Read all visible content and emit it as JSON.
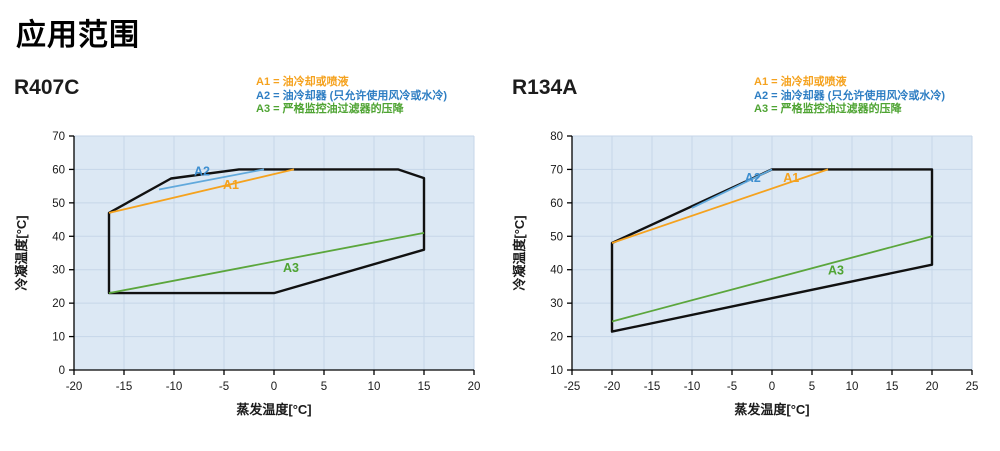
{
  "title": "应用范围",
  "legend": {
    "items": [
      {
        "label": "A1 = 油冷却或喷液",
        "color": "#F5A21E"
      },
      {
        "label": "A2 = 油冷却器 (只允许使用风冷或水冷)",
        "color": "#2E7EC3"
      },
      {
        "label": "A3 = 严格监控油过滤器的压降",
        "color": "#4FA433"
      }
    ]
  },
  "colors": {
    "plot_bg": "#dce8f4",
    "grid": "#c6d6e8",
    "axis": "#000000",
    "envelope": "#111111"
  },
  "chart_data": [
    {
      "type": "line",
      "title": "R407C",
      "xlabel": "蒸发温度[°C]",
      "ylabel": "冷凝温度[°C]",
      "xlim": [
        -20,
        20
      ],
      "ylim": [
        0,
        70
      ],
      "x_ticks": [
        -20,
        -15,
        -10,
        -5,
        0,
        5,
        10,
        15,
        20
      ],
      "y_ticks": [
        0,
        10,
        20,
        30,
        40,
        50,
        60,
        70
      ],
      "grid": true,
      "envelope": [
        [
          -16.5,
          47
        ],
        [
          -10.3,
          57.3
        ],
        [
          -3.5,
          60
        ],
        [
          12.4,
          60
        ],
        [
          15,
          57.4
        ],
        [
          15,
          36
        ],
        [
          0,
          23
        ],
        [
          -16.5,
          23
        ]
      ],
      "series": [
        {
          "name": "A1",
          "color": "#F5A21E",
          "label_color": "#F5A21E",
          "points": [
            [
              -16.5,
              47
            ],
            [
              2,
              60
            ]
          ],
          "label_at": [
            -4.3,
            54.2
          ]
        },
        {
          "name": "A2",
          "color": "#61A9DC",
          "label_color": "#3E8FD0",
          "points": [
            [
              -11.5,
              54
            ],
            [
              -1,
              60
            ]
          ],
          "label_at": [
            -7.2,
            58.2
          ]
        },
        {
          "name": "A3",
          "color": "#5BA63C",
          "label_color": "#4FA433",
          "points": [
            [
              -16.5,
              23
            ],
            [
              15,
              41
            ]
          ],
          "label_at": [
            1.7,
            29.3
          ]
        }
      ]
    },
    {
      "type": "line",
      "title": "R134A",
      "xlabel": "蒸发温度[°C]",
      "ylabel": "冷凝温度[°C]",
      "xlim": [
        -25,
        25
      ],
      "ylim": [
        10,
        80
      ],
      "x_ticks": [
        -25,
        -20,
        -15,
        -10,
        -5,
        0,
        5,
        10,
        15,
        20,
        25
      ],
      "y_ticks": [
        10,
        20,
        30,
        40,
        50,
        60,
        70,
        80
      ],
      "grid": true,
      "envelope": [
        [
          -20,
          48
        ],
        [
          0,
          70
        ],
        [
          20,
          70
        ],
        [
          20,
          41.5
        ],
        [
          -20,
          21.5
        ]
      ],
      "series": [
        {
          "name": "A1",
          "color": "#F5A21E",
          "label_color": "#F5A21E",
          "points": [
            [
              -20,
              48
            ],
            [
              7,
              70
            ]
          ],
          "label_at": [
            2.4,
            66.3
          ]
        },
        {
          "name": "A2",
          "color": "#61A9DC",
          "label_color": "#3E8FD0",
          "points": [
            [
              -10,
              58.5
            ],
            [
              0,
              70
            ]
          ],
          "label_at": [
            -2.4,
            66.3
          ]
        },
        {
          "name": "A3",
          "color": "#5BA63C",
          "label_color": "#4FA433",
          "points": [
            [
              -20,
              24.5
            ],
            [
              20,
              50
            ]
          ],
          "label_at": [
            8,
            38.5
          ]
        }
      ]
    }
  ]
}
